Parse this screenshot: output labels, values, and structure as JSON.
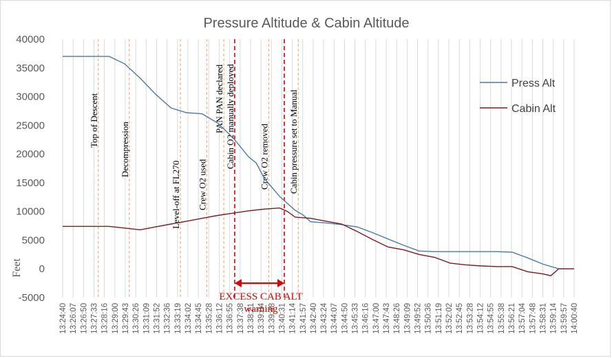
{
  "chart_data": {
    "type": "line",
    "title": "Pressure Altitude & Cabin Altitude",
    "ylabel": "Feet",
    "xlabel": "",
    "ylim": [
      -5000,
      40000
    ],
    "yticks": [
      -5000,
      0,
      5000,
      10000,
      15000,
      20000,
      25000,
      30000,
      35000,
      40000
    ],
    "x_tick_labels": [
      "13:24:40",
      "13:26:07",
      "13:26:50",
      "13:27:33",
      "13:28:16",
      "13:29:00",
      "13:29:43",
      "13:30:26",
      "13:31:09",
      "13:31:52",
      "13:32:36",
      "13:33:19",
      "13:34:02",
      "13:34:45",
      "13:35:28",
      "13:36:12",
      "13:36:55",
      "13:37:38",
      "13:38:21",
      "13:39:04",
      "13:39:48",
      "13:40:31",
      "13:41:14",
      "13:41:57",
      "13:42:40",
      "13:43:24",
      "13:44:07",
      "13:44:50",
      "13:45:33",
      "13:46:16",
      "13:47:00",
      "13:47:43",
      "13:48:26",
      "13:49:09",
      "13:49:52",
      "13:50:36",
      "13:51:19",
      "13:52:02",
      "13:52:45",
      "13:53:28",
      "13:54:12",
      "13:54:55",
      "13:55:38",
      "13:56:21",
      "13:57:04",
      "13:57:48",
      "13:58:31",
      "13:59:14",
      "13:59:57",
      "14:00:40"
    ],
    "grid": "vertical",
    "legend_position": "right",
    "series": [
      {
        "name": "Press Alt",
        "color": "#4e79a7",
        "values": [
          [
            0,
            37000
          ],
          [
            3,
            37000
          ],
          [
            4,
            35700
          ],
          [
            5,
            33200
          ],
          [
            6,
            30400
          ],
          [
            7,
            28000
          ],
          [
            8,
            27200
          ],
          [
            9,
            27000
          ],
          [
            10,
            25400
          ],
          [
            11,
            22800
          ],
          [
            12,
            19500
          ],
          [
            12.5,
            18400
          ],
          [
            13,
            15800
          ],
          [
            14,
            12600
          ],
          [
            15,
            10200
          ],
          [
            15.5,
            9400
          ],
          [
            16,
            8200
          ],
          [
            17,
            8000
          ],
          [
            18,
            7700
          ],
          [
            19,
            7300
          ],
          [
            20,
            6300
          ],
          [
            21,
            5200
          ],
          [
            22,
            4100
          ],
          [
            23,
            3100
          ],
          [
            24,
            3000
          ],
          [
            25,
            3000
          ],
          [
            26,
            3000
          ],
          [
            27,
            3000
          ],
          [
            28,
            3000
          ],
          [
            29,
            2900
          ],
          [
            30,
            1900
          ],
          [
            31,
            800
          ],
          [
            32,
            0
          ],
          [
            33,
            0
          ]
        ]
      },
      {
        "name": "Cabin Alt",
        "color": "#7b1b1b",
        "values": [
          [
            0,
            7400
          ],
          [
            3,
            7400
          ],
          [
            4,
            7100
          ],
          [
            5,
            6800
          ],
          [
            6,
            7300
          ],
          [
            7,
            7800
          ],
          [
            8,
            8300
          ],
          [
            9,
            8800
          ],
          [
            10,
            9300
          ],
          [
            11,
            9700
          ],
          [
            12,
            10100
          ],
          [
            13,
            10400
          ],
          [
            14,
            10600
          ],
          [
            14.5,
            10000
          ],
          [
            15,
            9000
          ],
          [
            16,
            8800
          ],
          [
            17,
            8300
          ],
          [
            18,
            7800
          ],
          [
            19,
            6500
          ],
          [
            20,
            5100
          ],
          [
            21,
            3800
          ],
          [
            22,
            3300
          ],
          [
            23,
            2500
          ],
          [
            24,
            2000
          ],
          [
            25,
            1000
          ],
          [
            26,
            700
          ],
          [
            27,
            500
          ],
          [
            28,
            400
          ],
          [
            29,
            400
          ],
          [
            30,
            -500
          ],
          [
            31,
            -900
          ],
          [
            31.5,
            -1200
          ],
          [
            32,
            0
          ],
          [
            33,
            0
          ]
        ]
      }
    ],
    "events": [
      {
        "label": "Top of Descent",
        "x": 2.3,
        "style": "dashed-orange"
      },
      {
        "label": "Decompression",
        "x": 4.3,
        "style": "dashed-orange"
      },
      {
        "label": "Level-off at FL270",
        "x": 7.6,
        "style": "dashed-orange"
      },
      {
        "label": "Crew O2  used",
        "x": 9.3,
        "style": "dashed-orange"
      },
      {
        "label": "PAN PAN declared",
        "x": 10.4,
        "style": "dashed-orange"
      },
      {
        "label": "Cabin O2 manually deployed",
        "x": 11.1,
        "style": "dashed-red"
      },
      {
        "label": "Crew O2  removed",
        "x": 13.3,
        "style": "dashed-orange"
      },
      {
        "label": "Cabin pressure set to Manual",
        "x": 15.2,
        "style": "dashed-orange"
      },
      {
        "label": "",
        "x": 14.3,
        "style": "dashed-red"
      }
    ],
    "annotation": {
      "label_line1": "EXCESS CAB ALT",
      "label_line2": "warning",
      "x_start": 11.1,
      "x_end": 14.3,
      "y": -2500,
      "color": "#e00000"
    }
  }
}
